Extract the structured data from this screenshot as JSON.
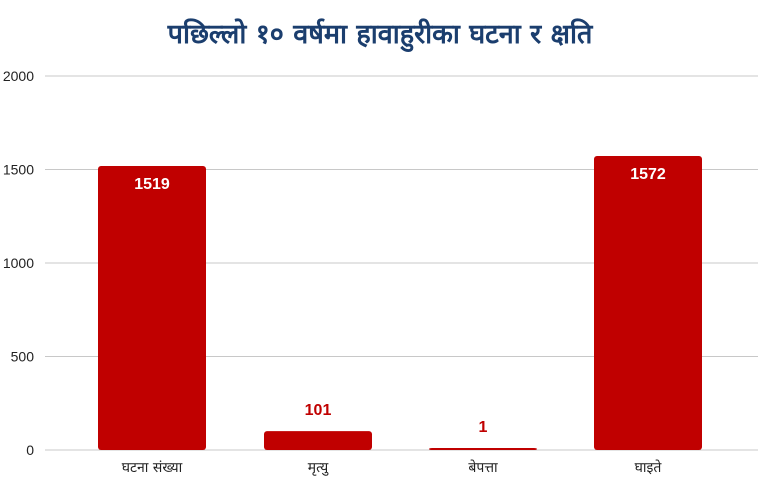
{
  "title": "पछिल्लो १० वर्षमा हावाहुरीका घटना र क्षति",
  "colors": {
    "bar": "#c00000",
    "bar_label_inside": "#ffffff",
    "bar_label_outside": "#c00000",
    "grid": "#c8c8c8",
    "title": "#1b3e6e"
  },
  "chart_data": {
    "type": "bar",
    "title": "पछिल्लो १० वर्षमा हावाहुरीका घटना र क्षति",
    "categories": [
      "घटना संख्या",
      "मृत्यु",
      "बेपत्ता",
      "घाइते"
    ],
    "values": [
      1519,
      101,
      1,
      1572
    ],
    "data_labels": [
      "1519",
      "101",
      "1",
      "1572"
    ],
    "yticks": [
      "0",
      "500",
      "1000",
      "1500",
      "2000"
    ],
    "ylim": [
      0,
      2000
    ],
    "xlabel": "",
    "ylabel": "",
    "grid": true,
    "legend": "none"
  }
}
